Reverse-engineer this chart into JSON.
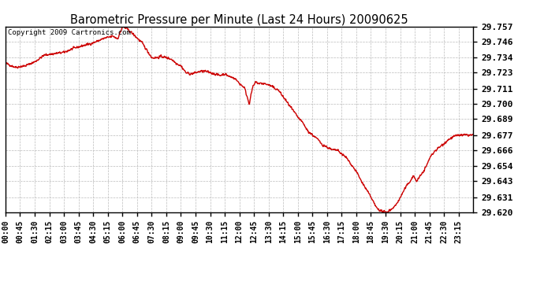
{
  "title": "Barometric Pressure per Minute (Last 24 Hours) 20090625",
  "copyright": "Copyright 2009 Cartronics.com",
  "line_color": "#cc0000",
  "background_color": "#ffffff",
  "grid_color": "#bbbbbb",
  "y_min": 29.62,
  "y_max": 29.757,
  "y_ticks": [
    29.62,
    29.631,
    29.643,
    29.654,
    29.666,
    29.677,
    29.689,
    29.7,
    29.711,
    29.723,
    29.734,
    29.746,
    29.757
  ],
  "x_tick_labels": [
    "00:00",
    "00:45",
    "01:30",
    "02:15",
    "03:00",
    "03:45",
    "04:30",
    "05:15",
    "06:00",
    "06:45",
    "07:30",
    "08:15",
    "09:00",
    "09:45",
    "10:30",
    "11:15",
    "12:00",
    "12:45",
    "13:30",
    "14:15",
    "15:00",
    "15:45",
    "16:30",
    "17:15",
    "18:00",
    "18:45",
    "19:30",
    "20:15",
    "21:00",
    "21:45",
    "22:30",
    "23:15"
  ],
  "key_points_x": [
    0,
    30,
    60,
    90,
    120,
    150,
    180,
    210,
    240,
    270,
    300,
    315,
    330,
    345,
    360,
    375,
    390,
    420,
    450,
    465,
    480,
    495,
    510,
    525,
    540,
    555,
    570,
    585,
    600,
    615,
    630,
    645,
    660,
    675,
    690,
    705,
    720,
    735,
    750,
    760,
    770,
    780,
    795,
    810,
    825,
    840,
    855,
    870,
    885,
    900,
    915,
    930,
    945,
    960,
    975,
    990,
    1005,
    1020,
    1035,
    1050,
    1065,
    1080,
    1095,
    1110,
    1125,
    1140,
    1155,
    1170,
    1185,
    1200,
    1215,
    1230,
    1245,
    1255,
    1265,
    1280,
    1295,
    1305,
    1320,
    1335,
    1350,
    1365,
    1380,
    1395,
    1410,
    1425,
    1440
  ],
  "key_points_y": [
    29.73,
    29.727,
    29.728,
    29.731,
    29.736,
    29.737,
    29.738,
    29.741,
    29.743,
    29.745,
    29.748,
    29.749,
    29.75,
    29.748,
    29.757,
    29.755,
    29.752,
    29.745,
    29.734,
    29.734,
    29.735,
    29.734,
    29.733,
    29.73,
    29.728,
    29.723,
    29.722,
    29.723,
    29.724,
    29.724,
    29.723,
    29.722,
    29.721,
    29.722,
    29.72,
    29.719,
    29.715,
    29.712,
    29.7,
    29.712,
    29.716,
    29.715,
    29.715,
    29.714,
    29.712,
    29.71,
    29.705,
    29.7,
    29.695,
    29.69,
    29.686,
    29.68,
    29.677,
    29.674,
    29.67,
    29.668,
    29.666,
    29.666,
    29.663,
    29.66,
    29.655,
    29.65,
    29.643,
    29.637,
    29.631,
    29.624,
    29.621,
    29.62,
    29.622,
    29.625,
    29.631,
    29.638,
    29.643,
    29.647,
    29.643,
    29.648,
    29.654,
    29.66,
    29.665,
    29.668,
    29.671,
    29.674,
    29.676,
    29.677,
    29.677,
    29.677,
    29.677
  ]
}
